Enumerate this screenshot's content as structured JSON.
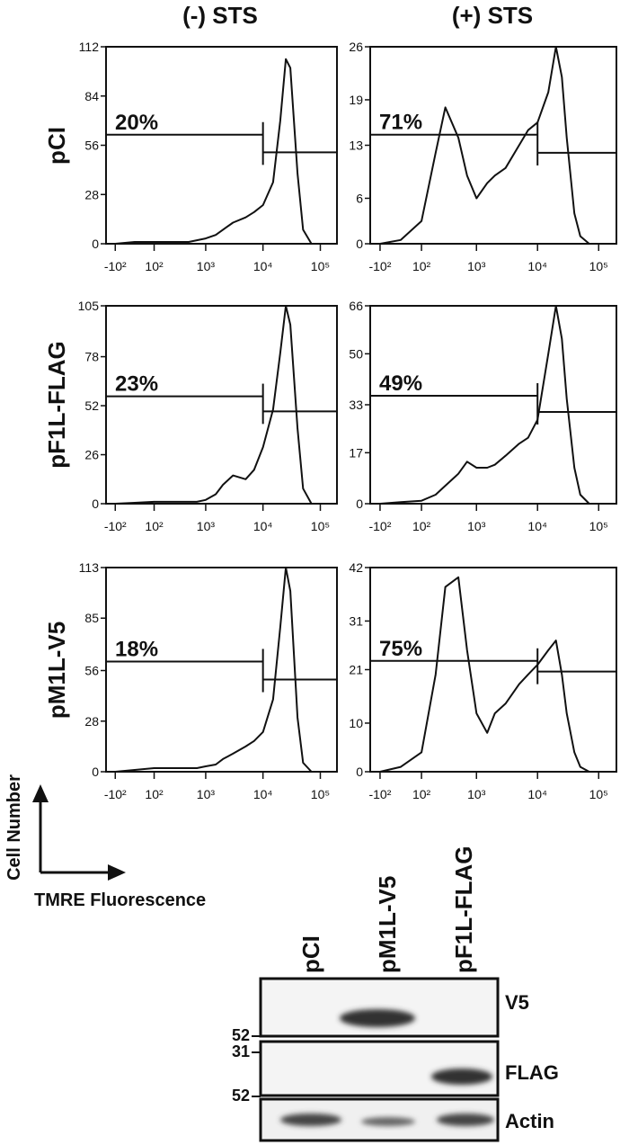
{
  "column_titles": [
    "(-) STS",
    "(+) STS"
  ],
  "row_labels": [
    "pCI",
    "pF1L-FLAG",
    "pM1L-V5"
  ],
  "axis_key": {
    "y_label": "Cell Number",
    "x_label": "TMRE Fluorescence"
  },
  "chart_data": [
    {
      "type": "line",
      "xscale": "biexponential",
      "xlim": [
        -165,
        195000
      ],
      "ylim": [
        0,
        112
      ],
      "yticks": [
        0,
        28,
        56,
        84,
        112
      ],
      "xticks": [
        {
          "value": -100,
          "label": "-10²"
        },
        {
          "value": 100,
          "label": "10²"
        },
        {
          "value": 1000,
          "label": "10³"
        },
        {
          "value": 10000,
          "label": "10⁴"
        },
        {
          "value": 100000,
          "label": "10⁵"
        }
      ],
      "x": [
        -100,
        0,
        100,
        200,
        300,
        500,
        700,
        1000,
        1500,
        2000,
        3000,
        5000,
        7000,
        10000,
        15000,
        20000,
        25000,
        30000,
        40000,
        50000,
        70000,
        100000
      ],
      "values": [
        0,
        1,
        1,
        1,
        1,
        1,
        2,
        3,
        5,
        8,
        12,
        15,
        18,
        22,
        35,
        70,
        105,
        100,
        40,
        8,
        0,
        0
      ],
      "gate": {
        "x": 10000,
        "y_left": 62,
        "y_right": 52
      },
      "annotation": "20%",
      "color": "#111111"
    },
    {
      "type": "line",
      "xscale": "biexponential",
      "xlim": [
        -165,
        195000
      ],
      "ylim": [
        0,
        26
      ],
      "yticks": [
        0,
        6,
        13,
        19,
        26
      ],
      "xticks": [
        {
          "value": -100,
          "label": "-10²"
        },
        {
          "value": 100,
          "label": "10²"
        },
        {
          "value": 1000,
          "label": "10³"
        },
        {
          "value": 10000,
          "label": "10⁴"
        },
        {
          "value": 100000,
          "label": "10⁵"
        }
      ],
      "x": [
        -100,
        0,
        100,
        200,
        300,
        500,
        700,
        1000,
        1500,
        2000,
        3000,
        5000,
        7000,
        10000,
        15000,
        20000,
        25000,
        30000,
        40000,
        50000,
        70000,
        100000
      ],
      "values": [
        0,
        0.5,
        3,
        12,
        18,
        14,
        9,
        6,
        8,
        9,
        10,
        13,
        15,
        16,
        20,
        26,
        22,
        14,
        4,
        1,
        0,
        0
      ],
      "gate": {
        "x": 10000,
        "y_left": 14.4,
        "y_right": 12
      },
      "annotation": "71%",
      "color": "#111111"
    },
    {
      "type": "line",
      "xscale": "biexponential",
      "xlim": [
        -165,
        195000
      ],
      "ylim": [
        0,
        105
      ],
      "yticks": [
        0,
        26,
        52,
        78,
        105
      ],
      "xticks": [
        {
          "value": -100,
          "label": "-10²"
        },
        {
          "value": 100,
          "label": "10²"
        },
        {
          "value": 1000,
          "label": "10³"
        },
        {
          "value": 10000,
          "label": "10⁴"
        },
        {
          "value": 100000,
          "label": "10⁵"
        }
      ],
      "x": [
        -100,
        0,
        100,
        200,
        300,
        500,
        700,
        1000,
        1500,
        2000,
        3000,
        5000,
        7000,
        10000,
        15000,
        20000,
        25000,
        30000,
        40000,
        50000,
        70000,
        100000
      ],
      "values": [
        0,
        0.5,
        1,
        1,
        1,
        1,
        1,
        2,
        5,
        10,
        15,
        13,
        18,
        30,
        50,
        80,
        105,
        95,
        40,
        8,
        0,
        0
      ],
      "gate": {
        "x": 10000,
        "y_left": 57,
        "y_right": 49
      },
      "annotation": "23%",
      "color": "#111111"
    },
    {
      "type": "line",
      "xscale": "biexponential",
      "xlim": [
        -165,
        195000
      ],
      "ylim": [
        0,
        66
      ],
      "yticks": [
        0,
        17,
        33,
        50,
        66
      ],
      "xticks": [
        {
          "value": -100,
          "label": "-10²"
        },
        {
          "value": 100,
          "label": "10²"
        },
        {
          "value": 1000,
          "label": "10³"
        },
        {
          "value": 10000,
          "label": "10⁴"
        },
        {
          "value": 100000,
          "label": "10⁵"
        }
      ],
      "x": [
        -100,
        0,
        100,
        200,
        300,
        500,
        700,
        1000,
        1500,
        2000,
        3000,
        5000,
        7000,
        10000,
        15000,
        20000,
        25000,
        30000,
        40000,
        50000,
        70000,
        100000
      ],
      "values": [
        0,
        0.5,
        1,
        3,
        6,
        10,
        14,
        12,
        12,
        13,
        16,
        20,
        22,
        28,
        50,
        66,
        55,
        35,
        12,
        3,
        0,
        0
      ],
      "gate": {
        "x": 10000,
        "y_left": 36,
        "y_right": 30.6
      },
      "annotation": "49%",
      "color": "#111111"
    },
    {
      "type": "line",
      "xscale": "biexponential",
      "xlim": [
        -165,
        195000
      ],
      "ylim": [
        0,
        113
      ],
      "yticks": [
        0,
        28,
        56,
        85,
        113
      ],
      "xticks": [
        {
          "value": -100,
          "label": "-10²"
        },
        {
          "value": 100,
          "label": "10²"
        },
        {
          "value": 1000,
          "label": "10³"
        },
        {
          "value": 10000,
          "label": "10⁴"
        },
        {
          "value": 100000,
          "label": "10⁵"
        }
      ],
      "x": [
        -100,
        0,
        100,
        200,
        300,
        500,
        700,
        1000,
        1500,
        2000,
        3000,
        5000,
        7000,
        10000,
        15000,
        20000,
        25000,
        30000,
        40000,
        50000,
        70000,
        100000
      ],
      "values": [
        0,
        1,
        2,
        2,
        2,
        2,
        2,
        3,
        4,
        7,
        10,
        14,
        17,
        22,
        40,
        80,
        113,
        100,
        30,
        5,
        0,
        0
      ],
      "gate": {
        "x": 10000,
        "y_left": 61,
        "y_right": 51
      },
      "annotation": "18%",
      "color": "#111111"
    },
    {
      "type": "line",
      "xscale": "biexponential",
      "xlim": [
        -165,
        195000
      ],
      "ylim": [
        0,
        42
      ],
      "yticks": [
        0,
        10,
        21,
        31,
        42
      ],
      "xticks": [
        {
          "value": -100,
          "label": "-10²"
        },
        {
          "value": 100,
          "label": "10²"
        },
        {
          "value": 1000,
          "label": "10³"
        },
        {
          "value": 10000,
          "label": "10⁴"
        },
        {
          "value": 100000,
          "label": "10⁵"
        }
      ],
      "x": [
        -100,
        0,
        100,
        200,
        300,
        500,
        700,
        1000,
        1500,
        2000,
        3000,
        5000,
        7000,
        10000,
        15000,
        20000,
        25000,
        30000,
        40000,
        50000,
        70000,
        100000
      ],
      "values": [
        0,
        1,
        4,
        20,
        38,
        40,
        25,
        12,
        8,
        12,
        14,
        18,
        20,
        22,
        25,
        27,
        20,
        12,
        4,
        1,
        0,
        0
      ],
      "gate": {
        "x": 10000,
        "y_left": 22.8,
        "y_right": 20.6
      },
      "annotation": "75%",
      "color": "#111111"
    }
  ],
  "western_blot": {
    "lanes": [
      "pCI",
      "pM1L-V5",
      "pF1L-FLAG"
    ],
    "rows": [
      {
        "label": "V5",
        "marker": "52"
      },
      {
        "label": "FLAG",
        "marker": "31"
      },
      {
        "label": "Actin",
        "marker": "52"
      }
    ]
  }
}
